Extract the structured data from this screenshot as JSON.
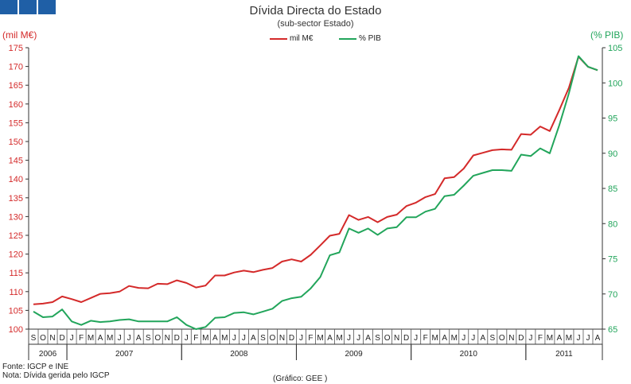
{
  "header": {
    "title": "Dívida Directa do Estado",
    "subtitle": "(sub-sector  Estado)"
  },
  "colors": {
    "accent": "#1f5fa6",
    "series1": "#d42a2a",
    "series2": "#22a55b"
  },
  "footer": {
    "source": "Fonte: IGCP e INE",
    "note": "Nota: Dívida gerida pelo IGCP",
    "credit": "(Gráfico: GEE )"
  },
  "chart_data": {
    "type": "line",
    "grid": false,
    "legend_position": "top-center",
    "y_left": {
      "label": "(mil M€)",
      "min": 100,
      "max": 175,
      "ticks": [
        100,
        105,
        110,
        115,
        120,
        125,
        130,
        135,
        140,
        145,
        150,
        155,
        160,
        165,
        170,
        175
      ]
    },
    "y_right": {
      "label": "(% PIB)",
      "min": 65,
      "max": 105,
      "ticks": [
        65,
        70,
        75,
        80,
        85,
        90,
        95,
        100,
        105
      ]
    },
    "month_labels": [
      "S",
      "O",
      "N",
      "D",
      "J",
      "F",
      "M",
      "A",
      "M",
      "J",
      "J",
      "A",
      "S",
      "O",
      "N",
      "D",
      "J",
      "F",
      "M",
      "A",
      "M",
      "J",
      "J",
      "A",
      "S",
      "O",
      "N",
      "D",
      "J",
      "F",
      "M",
      "A",
      "M",
      "J",
      "J",
      "A",
      "S",
      "O",
      "N",
      "D",
      "J",
      "F",
      "M",
      "A",
      "M",
      "J",
      "J",
      "A",
      "S",
      "O",
      "N",
      "D",
      "J",
      "F",
      "M",
      "A",
      "M",
      "J",
      "J",
      "A"
    ],
    "years": [
      {
        "label": "2006",
        "start": 0,
        "count": 4
      },
      {
        "label": "2007",
        "start": 4,
        "count": 12
      },
      {
        "label": "2008",
        "start": 16,
        "count": 12
      },
      {
        "label": "2009",
        "start": 28,
        "count": 12
      },
      {
        "label": "2010",
        "start": 40,
        "count": 12
      },
      {
        "label": "2011",
        "start": 52,
        "count": 8
      }
    ],
    "series": [
      {
        "name": "mil M€",
        "axis": "left",
        "color": "#d42a2a",
        "values": [
          106.6,
          106.8,
          107.2,
          108.7,
          108.0,
          107.2,
          108.3,
          109.4,
          109.6,
          110.0,
          111.5,
          111.0,
          110.9,
          112.1,
          112.0,
          113.0,
          112.3,
          111.1,
          111.6,
          114.3,
          114.3,
          115.1,
          115.6,
          115.2,
          115.8,
          116.3,
          118.0,
          118.6,
          118.0,
          119.8,
          122.3,
          124.9,
          125.4,
          130.4,
          129.1,
          129.9,
          128.5,
          129.9,
          130.5,
          132.8,
          133.7,
          135.2,
          136.0,
          140.2,
          140.5,
          142.8,
          146.3,
          147.0,
          147.7,
          147.9,
          147.8,
          152.0,
          151.8,
          154.0,
          152.8,
          158.4,
          164.3,
          172.6,
          169.9,
          169.0
        ]
      },
      {
        "name": "% PIB",
        "axis": "right",
        "color": "#22a55b",
        "values": [
          67.5,
          66.7,
          66.8,
          67.8,
          66.1,
          65.6,
          66.2,
          66.0,
          66.1,
          66.3,
          66.4,
          66.1,
          66.1,
          66.1,
          66.1,
          66.7,
          65.6,
          65.0,
          65.3,
          66.6,
          66.7,
          67.3,
          67.4,
          67.1,
          67.5,
          67.9,
          69.0,
          69.4,
          69.6,
          70.8,
          72.4,
          75.5,
          75.9,
          79.3,
          78.7,
          79.3,
          78.4,
          79.3,
          79.5,
          80.9,
          80.9,
          81.7,
          82.1,
          83.9,
          84.1,
          85.4,
          86.8,
          87.2,
          87.6,
          87.6,
          87.5,
          89.8,
          89.6,
          90.7,
          90.0,
          94.0,
          98.5,
          103.8,
          102.3,
          101.8
        ]
      }
    ]
  }
}
